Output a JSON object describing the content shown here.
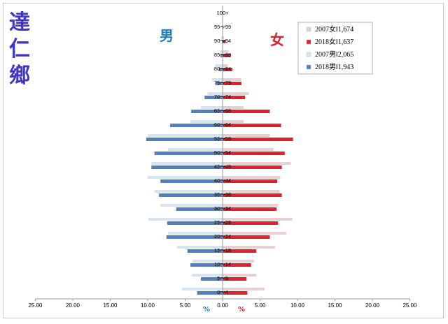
{
  "title_chars": [
    "達",
    "仁",
    "鄉"
  ],
  "chart_data": {
    "type": "bar",
    "orientation": "horizontal-population-pyramid",
    "male_label": "男",
    "female_label": "女",
    "xlabel_left": "%",
    "xlabel_right": "%",
    "xlim": [
      -25,
      25
    ],
    "xticks": [
      "25.00",
      "20.00",
      "15.00",
      "10.00",
      "5.00",
      "0.00",
      "5.00",
      "10.00",
      "15.00",
      "20.00",
      "25.00"
    ],
    "categories": [
      "0～4",
      "5～9",
      "10～14",
      "15～19",
      "20～24",
      "25～29",
      "30～34",
      "35～39",
      "40～44",
      "45～49",
      "50～54",
      "55～59",
      "60～64",
      "65～69",
      "70～74",
      "75～79",
      "80～84",
      "85～89",
      "90～94",
      "95～99",
      "100+"
    ],
    "series": [
      {
        "name": "2007女‖1,674",
        "color": "#e8d0d0",
        "values": [
          5.6,
          4.5,
          4.2,
          7.0,
          8.5,
          9.3,
          7.4,
          7.6,
          7.7,
          9.1,
          6.8,
          6.3,
          2.8,
          2.8,
          3.5,
          2.5,
          0.7,
          0.8,
          0.2,
          0.05,
          0.05
        ]
      },
      {
        "name": "2018女‖1,637",
        "color": "#e0202a",
        "values": [
          3.3,
          3.2,
          3.8,
          4.5,
          6.3,
          7.4,
          7.2,
          7.9,
          7.3,
          7.9,
          8.3,
          9.4,
          7.8,
          6.3,
          3.0,
          2.5,
          1.3,
          1.1,
          0.4,
          0.1,
          0.0
        ]
      },
      {
        "name": "2007男‖2,065",
        "color": "#d4e4f0",
        "values": [
          5.4,
          4.1,
          4.0,
          6.1,
          7.3,
          9.9,
          8.3,
          9.1,
          10.0,
          9.5,
          7.3,
          10.0,
          4.3,
          2.9,
          2.0,
          1.4,
          1.0,
          0.3,
          0.2,
          0.05,
          0.05
        ]
      },
      {
        "name": "2018男‖1,943",
        "color": "#4f81bd",
        "values": [
          3.4,
          2.9,
          4.3,
          4.7,
          7.5,
          7.4,
          6.2,
          8.5,
          8.3,
          9.5,
          9.1,
          10.2,
          7.0,
          4.2,
          2.4,
          0.9,
          0.5,
          0.3,
          0.1,
          0.0,
          0.0
        ]
      }
    ]
  }
}
